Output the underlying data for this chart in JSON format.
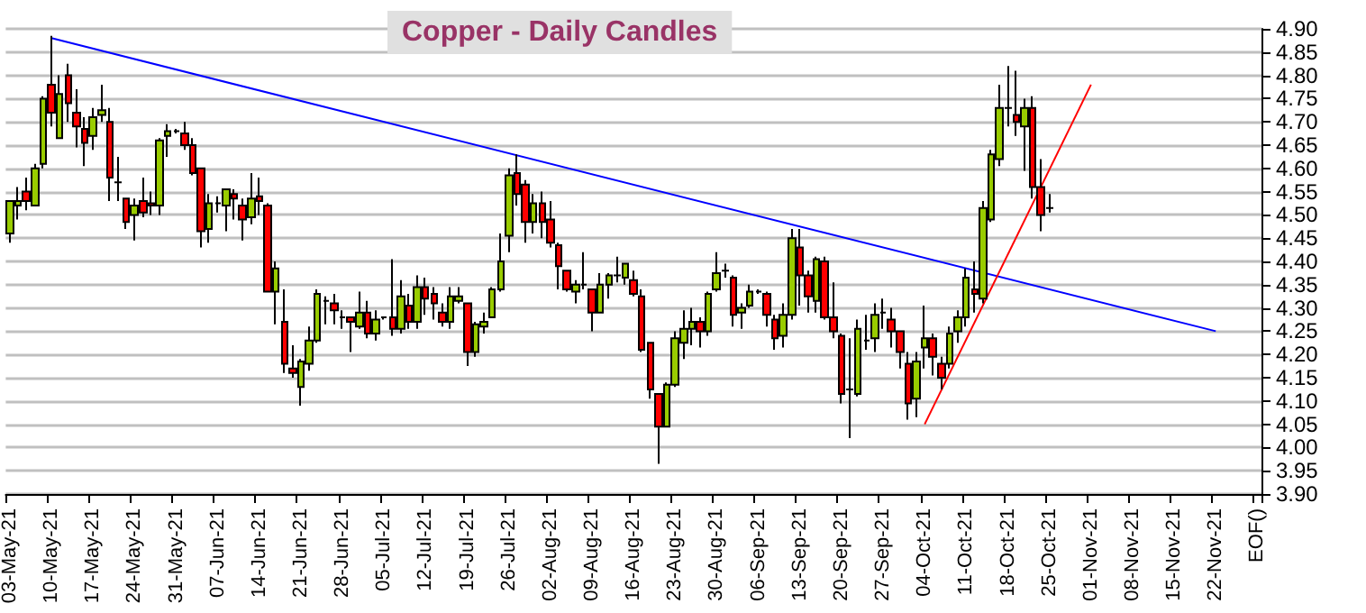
{
  "chart_data": {
    "type": "candlestick",
    "title": "Copper - Daily Candles",
    "categories": [
      "03-May-21",
      null,
      null,
      null,
      null,
      "10-May-21",
      null,
      null,
      null,
      null,
      "17-May-21",
      null,
      null,
      null,
      null,
      "24-May-21",
      null,
      null,
      null,
      null,
      "31-May-21",
      null,
      null,
      null,
      null,
      "07-Jun-21",
      null,
      null,
      null,
      null,
      "14-Jun-21",
      null,
      null,
      null,
      null,
      "21-Jun-21",
      null,
      null,
      null,
      null,
      "28-Jun-21",
      null,
      null,
      null,
      null,
      "05-Jul-21",
      null,
      null,
      null,
      null,
      "12-Jul-21",
      null,
      null,
      null,
      null,
      "19-Jul-21",
      null,
      null,
      null,
      null,
      "26-Jul-21",
      null,
      null,
      null,
      null,
      "02-Aug-21",
      null,
      null,
      null,
      null,
      "09-Aug-21",
      null,
      null,
      null,
      null,
      "16-Aug-21",
      null,
      null,
      null,
      null,
      "23-Aug-21",
      null,
      null,
      null,
      null,
      "30-Aug-21",
      null,
      null,
      null,
      null,
      "06-Sep-21",
      null,
      null,
      null,
      null,
      "13-Sep-21",
      null,
      null,
      null,
      null,
      "20-Sep-21",
      null,
      null,
      null,
      null,
      "27-Sep-21",
      null,
      null,
      null,
      null,
      "04-Oct-21",
      null,
      null,
      null,
      null,
      "11-Oct-21",
      null,
      null,
      null,
      null,
      "18-Oct-21",
      null,
      null,
      null,
      null,
      "25-Oct-21",
      null,
      null,
      null,
      null,
      "01-Nov-21",
      null,
      null,
      null,
      null,
      "08-Nov-21",
      null,
      null,
      null,
      null,
      "15-Nov-21",
      null,
      null,
      null,
      null,
      "22-Nov-21",
      null,
      null,
      null,
      null,
      "EOF()"
    ],
    "series": [
      {
        "ohlc": [
          [
            4.46,
            4.53,
            4.44,
            4.53
          ],
          [
            4.52,
            4.56,
            4.49,
            4.53
          ],
          [
            4.55,
            4.58,
            4.51,
            4.53
          ],
          [
            4.52,
            4.61,
            4.52,
            4.6
          ],
          [
            4.61,
            4.755,
            4.6,
            4.75
          ],
          [
            4.78,
            4.885,
            4.69,
            4.72
          ],
          [
            4.665,
            4.8,
            4.665,
            4.76
          ],
          [
            4.8,
            4.825,
            4.7,
            4.74
          ],
          [
            4.72,
            4.77,
            4.645,
            4.69
          ],
          [
            4.685,
            4.71,
            4.605,
            4.655
          ],
          [
            4.67,
            4.73,
            4.64,
            4.71
          ],
          [
            4.715,
            4.78,
            4.7,
            4.725
          ],
          [
            4.7,
            4.73,
            4.53,
            4.58
          ],
          [
            4.57,
            4.625,
            4.53,
            4.57
          ],
          [
            4.535,
            4.535,
            4.47,
            4.485
          ],
          [
            4.5,
            4.535,
            4.445,
            4.52
          ],
          [
            4.53,
            4.58,
            4.495,
            4.505
          ],
          [
            4.525,
            4.55,
            4.5,
            4.52
          ],
          [
            4.52,
            4.665,
            4.5,
            4.66
          ],
          [
            4.67,
            4.695,
            4.625,
            4.68
          ],
          [
            4.68,
            4.685,
            4.675,
            4.68
          ],
          [
            4.675,
            4.7,
            4.64,
            4.65
          ],
          [
            4.65,
            4.665,
            4.585,
            4.59
          ],
          [
            4.6,
            4.6,
            4.43,
            4.465
          ],
          [
            4.47,
            4.545,
            4.44,
            4.525
          ],
          [
            4.525,
            4.54,
            4.505,
            4.525
          ],
          [
            4.52,
            4.555,
            4.465,
            4.555
          ],
          [
            4.545,
            4.555,
            4.49,
            4.535
          ],
          [
            4.52,
            4.535,
            4.445,
            4.49
          ],
          [
            4.495,
            4.59,
            4.48,
            4.535
          ],
          [
            4.54,
            4.58,
            4.5,
            4.53
          ],
          [
            4.52,
            4.525,
            4.335,
            4.335
          ],
          [
            4.335,
            4.4,
            4.265,
            4.385
          ],
          [
            4.27,
            4.34,
            4.16,
            4.18
          ],
          [
            4.17,
            4.22,
            4.15,
            4.16
          ],
          [
            4.13,
            4.19,
            4.09,
            4.185
          ],
          [
            4.18,
            4.26,
            4.165,
            4.23
          ],
          [
            4.23,
            4.34,
            4.225,
            4.33
          ],
          [
            4.315,
            4.325,
            4.265,
            4.315
          ],
          [
            4.31,
            4.33,
            4.265,
            4.295
          ],
          [
            4.28,
            4.295,
            4.255,
            4.28
          ],
          [
            4.28,
            4.28,
            4.205,
            4.27
          ],
          [
            4.26,
            4.335,
            4.255,
            4.29
          ],
          [
            4.29,
            4.315,
            4.235,
            4.245
          ],
          [
            4.245,
            4.295,
            4.23,
            4.275
          ],
          [
            4.28,
            4.28,
            4.275,
            4.28
          ],
          [
            4.28,
            4.405,
            4.24,
            4.255
          ],
          [
            4.255,
            4.36,
            4.245,
            4.325
          ],
          [
            4.305,
            4.33,
            4.255,
            4.27
          ],
          [
            4.27,
            4.37,
            4.255,
            4.345
          ],
          [
            4.345,
            4.365,
            4.285,
            4.32
          ],
          [
            4.33,
            4.345,
            4.275,
            4.31
          ],
          [
            4.29,
            4.31,
            4.26,
            4.27
          ],
          [
            4.27,
            4.345,
            4.255,
            4.325
          ],
          [
            4.315,
            4.345,
            4.31,
            4.325
          ],
          [
            4.31,
            4.31,
            4.175,
            4.205
          ],
          [
            4.205,
            4.27,
            4.195,
            4.265
          ],
          [
            4.26,
            4.29,
            4.245,
            4.27
          ],
          [
            4.28,
            4.345,
            4.28,
            4.34
          ],
          [
            4.34,
            4.46,
            4.335,
            4.4
          ],
          [
            4.455,
            4.6,
            4.42,
            4.585
          ],
          [
            4.59,
            4.63,
            4.52,
            4.545
          ],
          [
            4.565,
            4.575,
            4.44,
            4.485
          ],
          [
            4.485,
            4.545,
            4.46,
            4.525
          ],
          [
            4.525,
            4.55,
            4.45,
            4.485
          ],
          [
            4.49,
            4.53,
            4.43,
            4.44
          ],
          [
            4.435,
            4.44,
            4.34,
            4.39
          ],
          [
            4.38,
            4.38,
            4.335,
            4.34
          ],
          [
            4.335,
            4.36,
            4.31,
            4.35
          ],
          [
            4.35,
            4.42,
            4.34,
            4.35
          ],
          [
            4.34,
            4.34,
            4.25,
            4.29
          ],
          [
            4.29,
            4.375,
            4.29,
            4.35
          ],
          [
            4.35,
            4.375,
            4.32,
            4.37
          ],
          [
            4.37,
            4.41,
            4.355,
            4.37
          ],
          [
            4.365,
            4.395,
            4.35,
            4.395
          ],
          [
            4.36,
            4.38,
            4.325,
            4.33
          ],
          [
            4.325,
            4.34,
            4.205,
            4.21
          ],
          [
            4.225,
            4.225,
            4.105,
            4.125
          ],
          [
            4.115,
            4.115,
            3.965,
            4.045
          ],
          [
            4.045,
            4.14,
            4.045,
            4.135
          ],
          [
            4.135,
            4.25,
            4.13,
            4.235
          ],
          [
            4.225,
            4.295,
            4.19,
            4.255
          ],
          [
            4.255,
            4.3,
            4.22,
            4.27
          ],
          [
            4.27,
            4.28,
            4.215,
            4.25
          ],
          [
            4.25,
            4.335,
            4.24,
            4.33
          ],
          [
            4.34,
            4.42,
            4.335,
            4.375
          ],
          [
            4.38,
            4.395,
            4.365,
            4.38
          ],
          [
            4.365,
            4.37,
            4.26,
            4.285
          ],
          [
            4.29,
            4.31,
            4.255,
            4.3
          ],
          [
            4.305,
            4.35,
            4.3,
            4.335
          ],
          [
            4.335,
            4.34,
            4.33,
            4.335
          ],
          [
            4.33,
            4.335,
            4.26,
            4.285
          ],
          [
            4.275,
            4.285,
            4.21,
            4.235
          ],
          [
            4.24,
            4.31,
            4.215,
            4.285
          ],
          [
            4.285,
            4.47,
            4.275,
            4.45
          ],
          [
            4.43,
            4.47,
            4.305,
            4.37
          ],
          [
            4.37,
            4.38,
            4.29,
            4.325
          ],
          [
            4.315,
            4.41,
            4.29,
            4.405
          ],
          [
            4.4,
            4.41,
            4.275,
            4.28
          ],
          [
            4.28,
            4.355,
            4.235,
            4.25
          ],
          [
            4.24,
            4.245,
            4.095,
            4.115
          ],
          [
            4.125,
            4.235,
            4.02,
            4.125
          ],
          [
            4.115,
            4.275,
            4.11,
            4.255
          ],
          [
            4.23,
            4.285,
            4.21,
            4.23
          ],
          [
            4.235,
            4.31,
            4.205,
            4.285
          ],
          [
            4.29,
            4.32,
            4.255,
            4.29
          ],
          [
            4.275,
            4.3,
            4.215,
            4.25
          ],
          [
            4.25,
            4.25,
            4.17,
            4.205
          ],
          [
            4.18,
            4.205,
            4.06,
            4.095
          ],
          [
            4.105,
            4.205,
            4.065,
            4.185
          ],
          [
            4.215,
            4.305,
            4.17,
            4.235
          ],
          [
            4.235,
            4.245,
            4.155,
            4.195
          ],
          [
            4.18,
            4.195,
            4.125,
            4.15
          ],
          [
            4.18,
            4.26,
            4.17,
            4.245
          ],
          [
            4.25,
            4.295,
            4.225,
            4.28
          ],
          [
            4.28,
            4.385,
            4.26,
            4.365
          ],
          [
            4.34,
            4.4,
            4.29,
            4.33
          ],
          [
            4.32,
            4.53,
            4.31,
            4.515
          ],
          [
            4.49,
            4.64,
            4.485,
            4.63
          ],
          [
            4.62,
            4.78,
            4.605,
            4.73
          ],
          [
            4.73,
            4.82,
            4.69,
            4.73
          ],
          [
            4.715,
            4.81,
            4.67,
            4.7
          ],
          [
            4.69,
            4.75,
            4.595,
            4.73
          ],
          [
            4.73,
            4.755,
            4.535,
            4.56
          ],
          [
            4.56,
            4.62,
            4.465,
            4.5
          ],
          [
            4.515,
            4.545,
            4.505,
            4.515
          ],
          null,
          null,
          null,
          null,
          null,
          null,
          null,
          null,
          null,
          null,
          null,
          null,
          null,
          null,
          null,
          null,
          null,
          null,
          null,
          null,
          null,
          null,
          null,
          null,
          null
        ],
        "colors": [
          "#99cc00",
          "#99cc00",
          "#ff0000",
          "#99cc00",
          "#99cc00",
          "#ff0000",
          "#99cc00",
          "#ff0000",
          "#ff0000",
          "#ff0000",
          "#99cc00",
          "#99cc00",
          "#ff0000",
          "#000000",
          "#ff0000",
          "#99cc00",
          "#ff0000",
          "#ff0000",
          "#99cc00",
          "#99cc00",
          "#000000",
          "#ff0000",
          "#ff0000",
          "#ff0000",
          "#99cc00",
          "#000000",
          "#99cc00",
          "#ff0000",
          "#ff0000",
          "#99cc00",
          "#ff0000",
          "#ff0000",
          "#99cc00",
          "#ff0000",
          "#ff0000",
          "#99cc00",
          "#99cc00",
          "#99cc00",
          "#000000",
          "#ff0000",
          "#000000",
          "#ff0000",
          "#99cc00",
          "#ff0000",
          "#99cc00",
          "#000000",
          "#ff0000",
          "#99cc00",
          "#ff0000",
          "#99cc00",
          "#ff0000",
          "#ff0000",
          "#ff0000",
          "#99cc00",
          "#99cc00",
          "#ff0000",
          "#99cc00",
          "#99cc00",
          "#99cc00",
          "#99cc00",
          "#99cc00",
          "#ff0000",
          "#ff0000",
          "#99cc00",
          "#ff0000",
          "#ff0000",
          "#ff0000",
          "#ff0000",
          "#99cc00",
          "#000000",
          "#ff0000",
          "#99cc00",
          "#99cc00",
          "#000000",
          "#99cc00",
          "#ff0000",
          "#ff0000",
          "#ff0000",
          "#ff0000",
          "#99cc00",
          "#99cc00",
          "#99cc00",
          "#99cc00",
          "#ff0000",
          "#99cc00",
          "#99cc00",
          "#000000",
          "#ff0000",
          "#99cc00",
          "#99cc00",
          "#000000",
          "#ff0000",
          "#ff0000",
          "#99cc00",
          "#99cc00",
          "#ff0000",
          "#ff0000",
          "#99cc00",
          "#ff0000",
          "#ff0000",
          "#ff0000",
          "#000000",
          "#99cc00",
          "#000000",
          "#99cc00",
          "#000000",
          "#ff0000",
          "#ff0000",
          "#ff0000",
          "#99cc00",
          "#99cc00",
          "#ff0000",
          "#ff0000",
          "#99cc00",
          "#99cc00",
          "#99cc00",
          "#ff0000",
          "#99cc00",
          "#99cc00",
          "#99cc00",
          "#000000",
          "#ff0000",
          "#99cc00",
          "#ff0000",
          "#ff0000",
          "#000000",
          null,
          null,
          null,
          null,
          null,
          null,
          null,
          null,
          null,
          null,
          null,
          null,
          null,
          null,
          null,
          null,
          null,
          null,
          null,
          null,
          null,
          null,
          null,
          null,
          null
        ]
      },
      {
        "type": "line",
        "color": "#0000ff",
        "x": [
          "10-May-21",
          "22-Nov-21"
        ],
        "values": [
          4.88,
          4.25
        ]
      },
      {
        "type": "line",
        "color": "#ff0000",
        "x": [
          "04-Oct-21",
          "01-Nov-21"
        ],
        "values": [
          4.05,
          4.78
        ]
      }
    ],
    "ylim": [
      3.9,
      4.9
    ],
    "yticks": [
      {
        "value": 3.9,
        "label": "3.90"
      },
      {
        "value": 3.95,
        "label": "3.95"
      },
      {
        "value": 4.0,
        "label": "4.00"
      },
      {
        "value": 4.05,
        "label": "4.05"
      },
      {
        "value": 4.1,
        "label": "4.10"
      },
      {
        "value": 4.15,
        "label": "4.15"
      },
      {
        "value": 4.2,
        "label": "4.20"
      },
      {
        "value": 4.25,
        "label": "4.25"
      },
      {
        "value": 4.3,
        "label": "4.30"
      },
      {
        "value": 4.35,
        "label": "4.35"
      },
      {
        "value": 4.4,
        "label": "4.40"
      },
      {
        "value": 4.45,
        "label": "4.45"
      },
      {
        "value": 4.5,
        "label": "4.50"
      },
      {
        "value": 4.55,
        "label": "4.55"
      },
      {
        "value": 4.6,
        "label": "4.60"
      },
      {
        "value": 4.65,
        "label": "4.65"
      },
      {
        "value": 4.7,
        "label": "4.70"
      },
      {
        "value": 4.75,
        "label": "4.75"
      },
      {
        "value": 4.8,
        "label": "4.80"
      },
      {
        "value": 4.85,
        "label": "4.85"
      },
      {
        "value": 4.9,
        "label": "4.90"
      }
    ],
    "grid": "y"
  }
}
